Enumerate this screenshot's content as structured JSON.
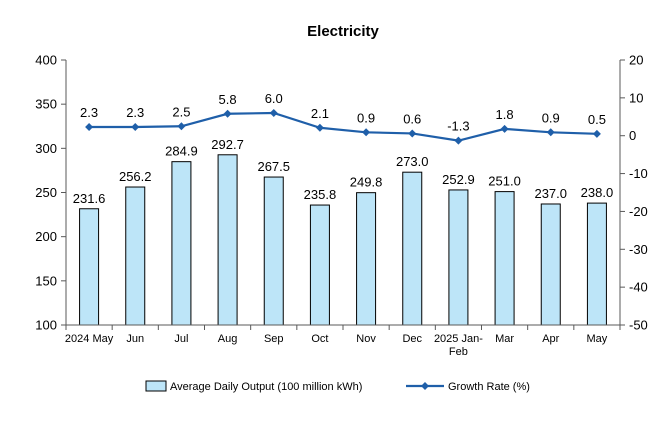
{
  "chart_data": {
    "type": "bar",
    "title": "Electricity",
    "categories": [
      [
        "2024 May"
      ],
      [
        "Jun"
      ],
      [
        "Jul"
      ],
      [
        "Aug"
      ],
      [
        "Sep"
      ],
      [
        "Oct"
      ],
      [
        "Nov"
      ],
      [
        "Dec"
      ],
      [
        "2025 Jan-",
        "Feb"
      ],
      [
        "Mar"
      ],
      [
        "Apr"
      ],
      [
        "May"
      ]
    ],
    "series": [
      {
        "name": "Average Daily Output (100 million kWh)",
        "type": "bar",
        "axis": "left",
        "values": [
          231.6,
          256.2,
          284.9,
          292.7,
          267.5,
          235.8,
          249.8,
          273.0,
          252.9,
          251.0,
          237.0,
          238.0
        ],
        "labels": [
          "231.6",
          "256.2",
          "284.9",
          "292.7",
          "267.5",
          "235.8",
          "249.8",
          "273.0",
          "252.9",
          "251.0",
          "237.0",
          "238.0"
        ]
      },
      {
        "name": "Growth Rate (%)",
        "type": "line",
        "axis": "right",
        "values": [
          2.3,
          2.3,
          2.5,
          5.8,
          6.0,
          2.1,
          0.9,
          0.6,
          -1.3,
          1.8,
          0.9,
          0.5
        ],
        "labels": [
          "2.3",
          "2.3",
          "2.5",
          "5.8",
          "6.0",
          "2.1",
          "0.9",
          "0.6",
          "-1.3",
          "1.8",
          "0.9",
          "0.5"
        ]
      }
    ],
    "y_left": {
      "range": [
        100,
        400
      ],
      "ticks": [
        100,
        150,
        200,
        250,
        300,
        350,
        400
      ]
    },
    "y_right": {
      "range": [
        -50,
        20
      ],
      "ticks": [
        -50,
        -40,
        -30,
        -20,
        -10,
        0,
        10,
        20
      ]
    },
    "legend": "bottom",
    "grid": false,
    "colors": {
      "bar_fill": "#bde5f8",
      "bar_stroke": "#000000",
      "line": "#1f5fa9",
      "axis": "#595959"
    }
  }
}
